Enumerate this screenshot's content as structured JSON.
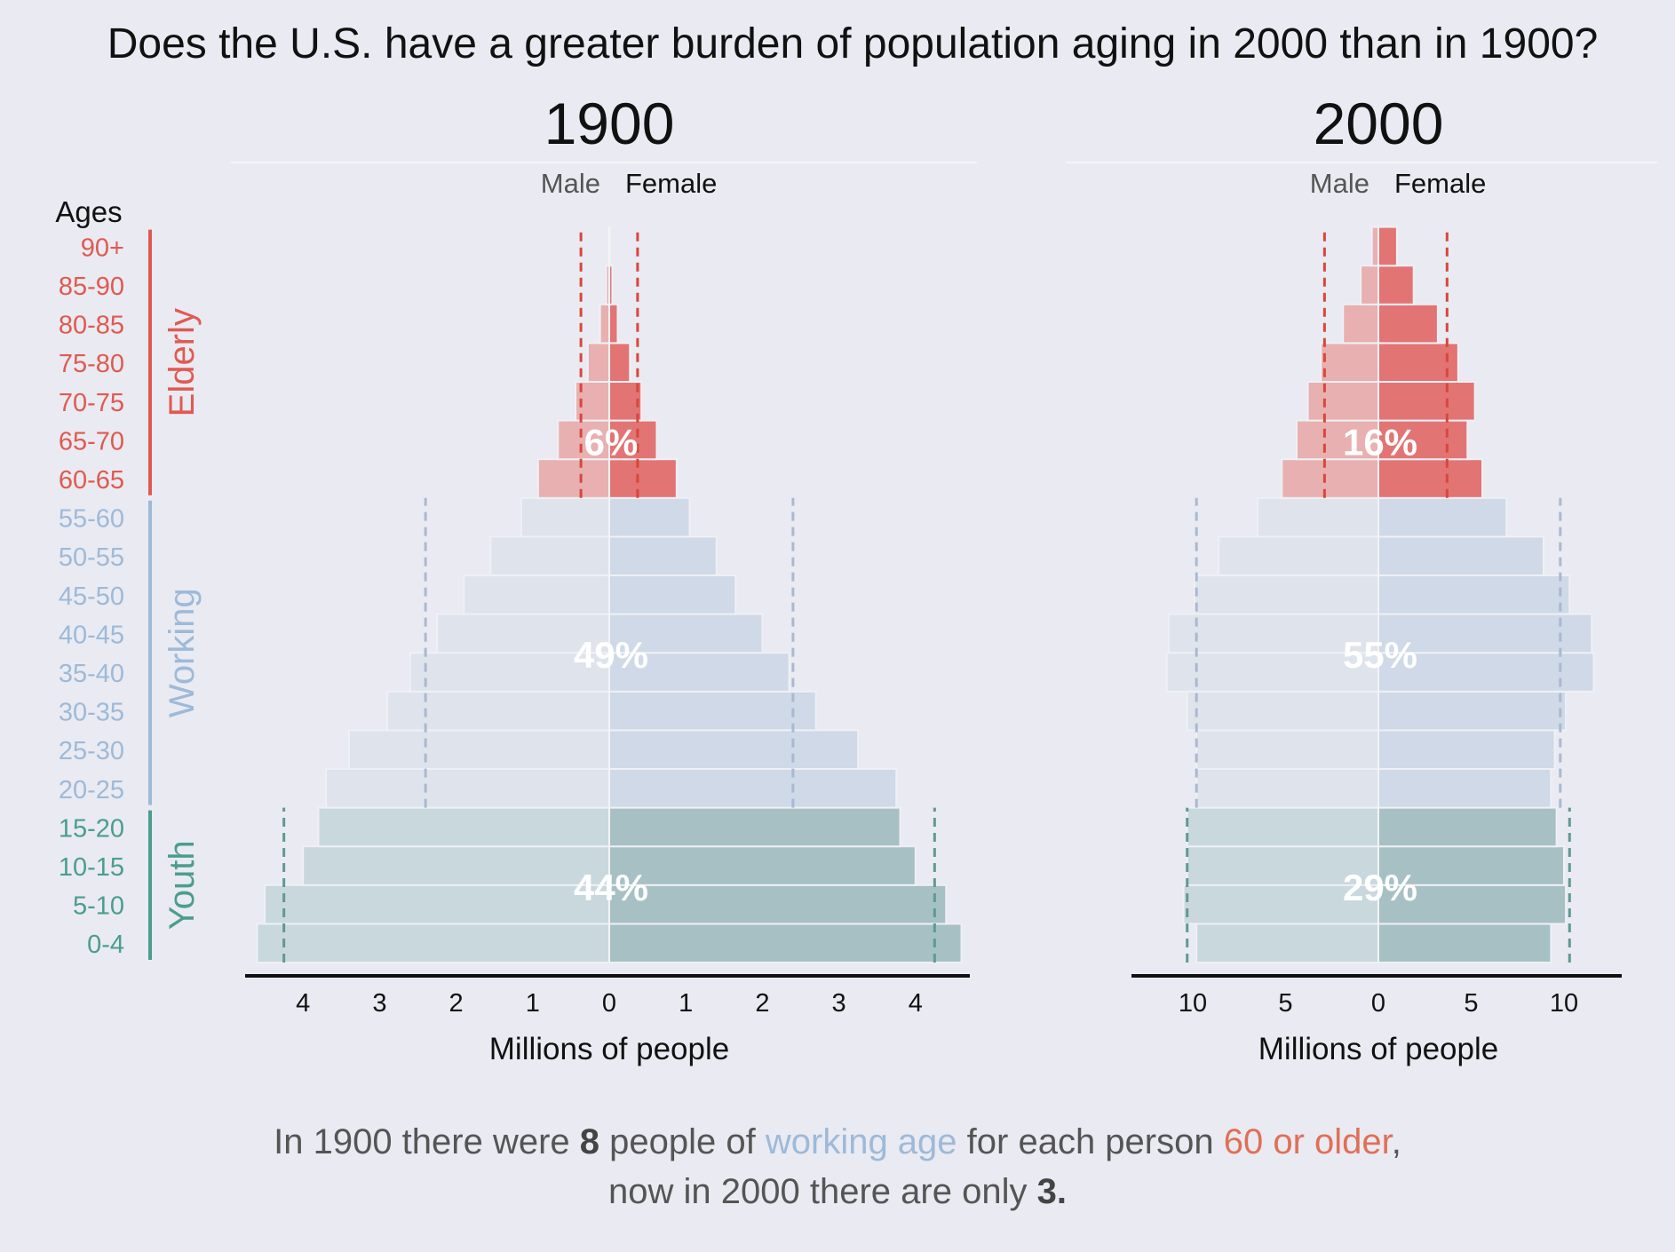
{
  "title": "Does the U.S. have a greater burden of population aging in 2000 than in 1900?",
  "ages_label": "Ages",
  "age_groups": [
    "0-4",
    "5-10",
    "10-15",
    "15-20",
    "20-25",
    "25-30",
    "30-35",
    "35-40",
    "40-45",
    "45-50",
    "50-55",
    "55-60",
    "60-65",
    "65-70",
    "70-75",
    "75-80",
    "80-85",
    "85-90",
    "90+"
  ],
  "group_labels": {
    "elderly": "Elderly",
    "working": "Working",
    "youth": "Youth"
  },
  "colors": {
    "elderly": "#e05a4f",
    "working": "#9dbad9",
    "youth": "#4a9e8c",
    "elderly_male": "#e8b0b0",
    "elderly_female": "#e37474",
    "working_male": "#dfe3ec",
    "working_female": "#cfd9e7",
    "youth_male": "#c9d8dd",
    "youth_female": "#a7c0c4",
    "highlight_working": "#9dbad9",
    "highlight_elderly": "#e07055"
  },
  "footnote": {
    "part1": "In 1900 there were ",
    "num1": "8",
    "part2": " people of ",
    "working_text": "working age",
    "part3": " for each person ",
    "elderly_text": "60 or older",
    "part4": ",",
    "part5": "now in 2000 there are only ",
    "num2": "3."
  },
  "chart_data": [
    {
      "type": "bar",
      "title": "1900",
      "male_label": "Male",
      "female_label": "Female",
      "xlabel": "Millions of people",
      "xlim": [
        -4.75,
        4.75
      ],
      "ticks": [
        4,
        3,
        2,
        1,
        0,
        1,
        2,
        3,
        4
      ],
      "categories": [
        "0-4",
        "5-10",
        "10-15",
        "15-20",
        "20-25",
        "25-30",
        "30-35",
        "35-40",
        "40-45",
        "45-50",
        "50-55",
        "55-60",
        "60-65",
        "65-70",
        "70-75",
        "75-80",
        "80-85",
        "85-90",
        "90+"
      ],
      "series": [
        {
          "name": "Male",
          "values": [
            4.6,
            4.5,
            4.0,
            3.8,
            3.7,
            3.4,
            2.9,
            2.6,
            2.25,
            1.9,
            1.55,
            1.15,
            0.93,
            0.67,
            0.44,
            0.28,
            0.12,
            0.04,
            0.01
          ]
        },
        {
          "name": "Female",
          "values": [
            4.6,
            4.4,
            4.0,
            3.8,
            3.75,
            3.25,
            2.7,
            2.35,
            2.0,
            1.65,
            1.4,
            1.05,
            0.88,
            0.62,
            0.42,
            0.27,
            0.11,
            0.04,
            0.01
          ]
        }
      ],
      "group_averages": {
        "youth": 4.25,
        "working": 2.4,
        "elderly": 0.37
      },
      "group_shares": {
        "elderly": "6%",
        "working": "49%",
        "youth": "44%"
      }
    },
    {
      "type": "bar",
      "title": "2000",
      "male_label": "Male",
      "female_label": "Female",
      "xlabel": "Millions of people",
      "xlim": [
        -12.8,
        12.8
      ],
      "ticks": [
        10,
        5,
        0,
        5,
        10
      ],
      "categories": [
        "0-4",
        "5-10",
        "10-15",
        "15-20",
        "20-25",
        "25-30",
        "30-35",
        "35-40",
        "40-45",
        "45-50",
        "50-55",
        "55-60",
        "60-65",
        "65-70",
        "70-75",
        "75-80",
        "80-85",
        "85-90",
        "90+"
      ],
      "series": [
        {
          "name": "Male",
          "values": [
            9.8,
            10.5,
            10.3,
            10.3,
            9.8,
            9.8,
            10.3,
            11.4,
            11.3,
            9.9,
            8.6,
            6.5,
            5.2,
            4.4,
            3.8,
            3.1,
            1.9,
            0.95,
            0.35
          ]
        },
        {
          "name": "Female",
          "values": [
            9.3,
            10.1,
            10.0,
            9.6,
            9.3,
            9.5,
            10.1,
            11.6,
            11.5,
            10.3,
            8.9,
            6.9,
            5.6,
            4.8,
            5.2,
            4.3,
            3.2,
            1.9,
            1.0
          ]
        }
      ],
      "group_averages": {
        "youth": 10.3,
        "working": 9.8,
        "elderly": 2.9,
        "elderly_female": 3.7
      },
      "group_shares": {
        "elderly": "16%",
        "working": "55%",
        "youth": "29%"
      }
    }
  ]
}
